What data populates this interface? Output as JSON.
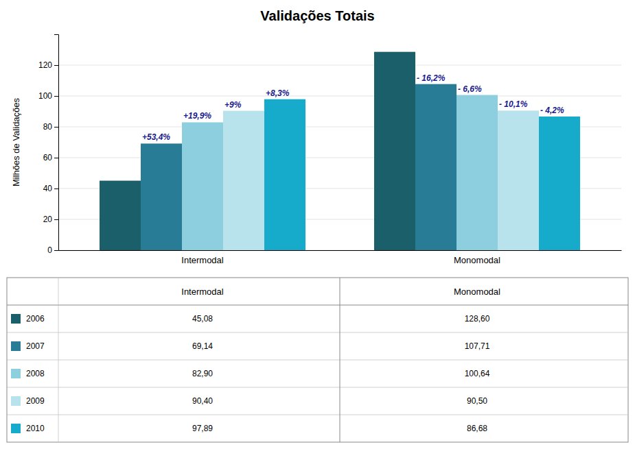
{
  "chart_data": {
    "type": "bar",
    "title": "Validações Totais",
    "y_label": "Milhões de Validações",
    "categories": [
      "Intermodal",
      "Monomodal"
    ],
    "series": [
      {
        "name": "2006",
        "color": "#1a5f6a",
        "values": [
          45.08,
          128.6
        ],
        "value_labels": [
          "45,08",
          "128,60"
        ]
      },
      {
        "name": "2007",
        "color": "#287c96",
        "values": [
          69.14,
          107.71
        ],
        "value_labels": [
          "69,14",
          "107,71"
        ]
      },
      {
        "name": "2008",
        "color": "#8dcfdf",
        "values": [
          82.9,
          100.64
        ],
        "value_labels": [
          "82,90",
          "100,64"
        ]
      },
      {
        "name": "2009",
        "color": "#b8e2ec",
        "values": [
          90.4,
          90.5
        ],
        "value_labels": [
          "90,40",
          "90,50"
        ]
      },
      {
        "name": "2010",
        "color": "#16aacb",
        "values": [
          97.89,
          86.68
        ],
        "value_labels": [
          "97,89",
          "86,68"
        ]
      }
    ],
    "annotations": [
      {
        "text": "+53,4%",
        "category": "Intermodal",
        "series": "2007",
        "color": "#1a1a8c"
      },
      {
        "text": "+19,9%",
        "category": "Intermodal",
        "series": "2008",
        "color": "#1a1a8c"
      },
      {
        "text": "+9%",
        "category": "Intermodal",
        "series": "2009",
        "color": "#1a1a8c"
      },
      {
        "text": "+8,3%",
        "category": "Intermodal",
        "series": "2010",
        "color": "#1a1a8c"
      },
      {
        "text": "- 16,2%",
        "category": "Monomodal",
        "series": "2007",
        "color": "#1a1a8c"
      },
      {
        "text": "- 6,6%",
        "category": "Monomodal",
        "series": "2008",
        "color": "#1a1a8c"
      },
      {
        "text": "- 10,1%",
        "category": "Monomodal",
        "series": "2009",
        "color": "#1a1a8c"
      },
      {
        "text": "- 4,2%",
        "category": "Monomodal",
        "series": "2010",
        "color": "#1a1a8c"
      }
    ],
    "ylim": [
      0,
      140
    ],
    "yticks": [
      0,
      20,
      40,
      60,
      80,
      100,
      120
    ],
    "grid": true,
    "legend": "bottom",
    "data_labels": true
  }
}
